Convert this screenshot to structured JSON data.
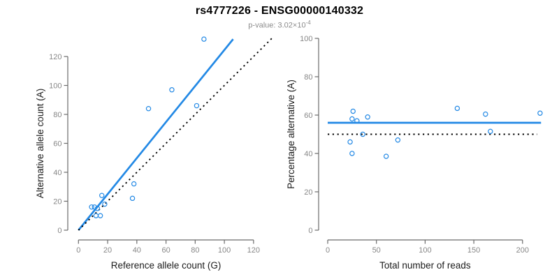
{
  "header": {
    "title": "rs4777226 - ENSG00000140332",
    "pvalue_prefix": "p-value: ",
    "pvalue_base": "3.02×10",
    "pvalue_exponent": "-4"
  },
  "colors": {
    "accent_blue": "#2389E5",
    "dotted_black": "#000000",
    "axis": "#6b6b6b",
    "tick_label": "#878787",
    "axis_title": "#1a1a1a",
    "title": "#000000",
    "subtitle": "#8c8c8c"
  },
  "chart_data": [
    {
      "id": "allele-counts",
      "type": "scatter",
      "title": "",
      "xlabel": "Reference allele count (G)",
      "ylabel": "Alternative allele count (A)",
      "xlim": [
        0,
        133
      ],
      "ylim": [
        0,
        135
      ],
      "xticks": [
        0,
        20,
        40,
        60,
        80,
        100,
        120
      ],
      "yticks": [
        0,
        20,
        40,
        60,
        80,
        100,
        120
      ],
      "grid": false,
      "legend": false,
      "marker": "open-circle",
      "points": [
        [
          9,
          16
        ],
        [
          11,
          16
        ],
        [
          12,
          10
        ],
        [
          13,
          15
        ],
        [
          15,
          10
        ],
        [
          16,
          24
        ],
        [
          18,
          18
        ],
        [
          37,
          22
        ],
        [
          38,
          32
        ],
        [
          48,
          84
        ],
        [
          64,
          97
        ],
        [
          81,
          86
        ],
        [
          86,
          132
        ]
      ],
      "lines": [
        {
          "name": "fit-line",
          "x1": 0,
          "y1": 0,
          "x2": 106,
          "y2": 132,
          "style": "solid",
          "color": "accent"
        },
        {
          "name": "identity-line",
          "x1": 0,
          "y1": 0,
          "x2": 133,
          "y2": 133,
          "style": "dotted",
          "color": "black"
        }
      ]
    },
    {
      "id": "percentage-vs-reads",
      "type": "scatter",
      "title": "",
      "xlabel": "Total number of reads",
      "ylabel": "Percentage alternative (A)",
      "xlim": [
        0,
        220
      ],
      "ylim": [
        0,
        100
      ],
      "xticks": [
        0,
        50,
        100,
        150,
        200
      ],
      "yticks": [
        0,
        20,
        40,
        60,
        80,
        100
      ],
      "grid": false,
      "legend": false,
      "marker": "open-circle",
      "points": [
        [
          23,
          46
        ],
        [
          25,
          40
        ],
        [
          25,
          58
        ],
        [
          26,
          62
        ],
        [
          30,
          57
        ],
        [
          36,
          50
        ],
        [
          41,
          59
        ],
        [
          60,
          38.5
        ],
        [
          72,
          47
        ],
        [
          133,
          63.5
        ],
        [
          162,
          60.5
        ],
        [
          167,
          51.5
        ],
        [
          218,
          61
        ]
      ],
      "lines": [
        {
          "name": "fit-line",
          "x1": 0,
          "y1": 56,
          "x2": 219,
          "y2": 56,
          "style": "solid",
          "color": "accent"
        },
        {
          "name": "null-line",
          "x1": 0,
          "y1": 50,
          "x2": 215,
          "y2": 50,
          "style": "dotted",
          "color": "black"
        }
      ]
    }
  ]
}
